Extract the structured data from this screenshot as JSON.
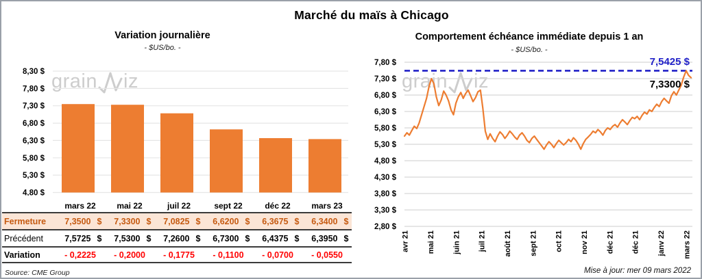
{
  "page": {
    "title": "Marché du maïs à Chicago"
  },
  "colors": {
    "accent_orange": "#ED7D31",
    "close_text": "#C55A11",
    "close_bg": "#FBE5D6",
    "variation_red": "#FF0000",
    "dashed_blue": "#2121C8",
    "grid_gray_left": "#E6E6E6",
    "grid_gray_right": "#D8D8D8",
    "watermark_gray": "#CDCDCD"
  },
  "watermark": {
    "left_text": "grain",
    "right_text": "iz"
  },
  "chart_data": [
    {
      "type": "bar",
      "title": "Variation journalière",
      "subtitle": "- $US/bo. -",
      "categories": [
        "mars 22",
        "mai 22",
        "juil 22",
        "sept 22",
        "déc 22",
        "mars 23"
      ],
      "values": [
        7.35,
        7.33,
        7.0825,
        6.62,
        6.3675,
        6.34
      ],
      "ylim": [
        4.8,
        8.3
      ],
      "yticks": [
        8.3,
        7.8,
        7.3,
        6.8,
        6.3,
        5.8,
        5.3,
        4.8
      ],
      "ytick_labels": [
        "8,30 $",
        "7,80 $",
        "7,30 $",
        "6,80 $",
        "6,30 $",
        "5,80 $",
        "5,30 $",
        "4,80 $"
      ],
      "grid": true,
      "bar_color": "#ED7D31"
    },
    {
      "type": "line",
      "title": "Comportement échéance immédiate depuis 1 an",
      "subtitle": "- $US/bo. -",
      "x_tick_labels": [
        "avr 21",
        "mai 21",
        "juin 21",
        "juil 21",
        "août 21",
        "sept 21",
        "oct 21",
        "nov 21",
        "déc 21",
        "déc 21",
        "janv 22",
        "mars 22"
      ],
      "values": [
        5.55,
        5.65,
        5.58,
        5.72,
        5.85,
        5.78,
        5.95,
        6.2,
        6.45,
        6.7,
        7.05,
        7.3,
        7.15,
        6.75,
        6.48,
        6.65,
        6.92,
        6.8,
        6.62,
        6.35,
        6.2,
        6.55,
        6.75,
        6.88,
        6.7,
        6.85,
        6.95,
        6.78,
        6.6,
        6.72,
        6.9,
        6.95,
        6.4,
        5.7,
        5.45,
        5.62,
        5.48,
        5.38,
        5.55,
        5.68,
        5.6,
        5.48,
        5.58,
        5.7,
        5.62,
        5.52,
        5.45,
        5.58,
        5.65,
        5.55,
        5.42,
        5.35,
        5.48,
        5.55,
        5.45,
        5.35,
        5.25,
        5.15,
        5.28,
        5.38,
        5.3,
        5.2,
        5.32,
        5.42,
        5.35,
        5.28,
        5.35,
        5.45,
        5.38,
        5.5,
        5.42,
        5.3,
        5.15,
        5.32,
        5.45,
        5.52,
        5.6,
        5.7,
        5.65,
        5.75,
        5.68,
        5.58,
        5.72,
        5.8,
        5.75,
        5.85,
        5.9,
        5.82,
        5.95,
        6.05,
        5.98,
        5.9,
        6.02,
        6.12,
        6.08,
        6.15,
        6.05,
        6.18,
        6.28,
        6.22,
        6.35,
        6.3,
        6.42,
        6.52,
        6.45,
        6.6,
        6.7,
        6.62,
        6.55,
        6.78,
        6.9,
        6.8,
        6.95,
        7.1,
        7.35,
        7.5425,
        7.4,
        7.33
      ],
      "ylim": [
        2.8,
        7.8
      ],
      "yticks": [
        7.8,
        7.3,
        6.8,
        6.3,
        5.8,
        5.3,
        4.8,
        4.3,
        3.8,
        3.3,
        2.8
      ],
      "ytick_labels": [
        "7,80 $",
        "7,30 $",
        "6,80 $",
        "6,30 $",
        "5,80 $",
        "5,30 $",
        "4,80 $",
        "4,30 $",
        "3,80 $",
        "3,30 $",
        "2,80 $"
      ],
      "grid": true,
      "line_color": "#ED7D31",
      "annotations": {
        "max_line": {
          "value": 7.5425,
          "label": "7,5425 $",
          "color": "#2121C8",
          "style": "dashed"
        },
        "last_label": {
          "value": 7.33,
          "label": "7,3300 $",
          "color": "#000000"
        }
      }
    }
  ],
  "table": {
    "rows": [
      {
        "label": "Fermeture",
        "style": "close",
        "currency": "$",
        "values": [
          "7,3500",
          "7,3300",
          "7,0825",
          "6,6200",
          "6,3675",
          "6,3400"
        ]
      },
      {
        "label": "Précédent",
        "style": "previous",
        "currency": "$",
        "values": [
          "7,5725",
          "7,5300",
          "7,2600",
          "6,7300",
          "6,4375",
          "6,3950"
        ]
      },
      {
        "label": "Variation",
        "style": "variation",
        "currency": "",
        "values": [
          "- 0,2225",
          "- 0,2000",
          "- 0,1775",
          "- 0,1100",
          "- 0,0700",
          "- 0,0550"
        ]
      }
    ]
  },
  "footer": {
    "source": "Source: CME Group",
    "updated": "Mise à jour: mer 09 mars 2022"
  }
}
